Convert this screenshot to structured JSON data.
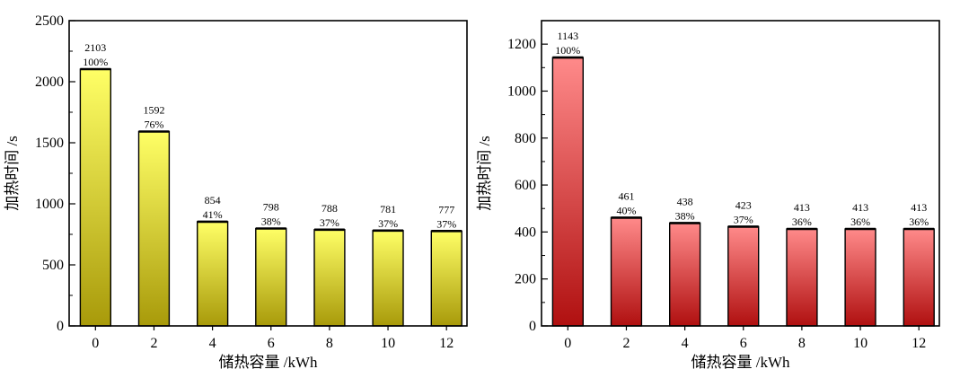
{
  "chart_data": [
    {
      "type": "bar",
      "categories": [
        "0",
        "2",
        "4",
        "6",
        "8",
        "10",
        "12"
      ],
      "values": [
        2103,
        1592,
        854,
        798,
        788,
        781,
        777
      ],
      "value_labels": [
        "2103",
        "1592",
        "854",
        "798",
        "788",
        "781",
        "777"
      ],
      "percent_labels": [
        "100%",
        "76%",
        "41%",
        "38%",
        "37%",
        "37%",
        "37%"
      ],
      "xlabel": "储热容量 /kWh",
      "ylabel": "加热时间 /s",
      "ylim": [
        0,
        2500
      ],
      "yticks": [
        0,
        500,
        1000,
        1500,
        2000,
        2500
      ],
      "grid": false,
      "bar_color_top": "#ffff66",
      "bar_color_bottom": "#a89a0a"
    },
    {
      "type": "bar",
      "categories": [
        "0",
        "2",
        "4",
        "6",
        "8",
        "10",
        "12"
      ],
      "values": [
        1143,
        461,
        438,
        423,
        413,
        413,
        413
      ],
      "value_labels": [
        "1143",
        "461",
        "438",
        "423",
        "413",
        "413",
        "413"
      ],
      "percent_labels": [
        "100%",
        "40%",
        "38%",
        "37%",
        "36%",
        "36%",
        "36%"
      ],
      "xlabel": "储热容量 /kWh",
      "ylabel": "加热时间 /s",
      "ylim": [
        0,
        1300
      ],
      "yticks": [
        0,
        200,
        400,
        600,
        800,
        1000,
        1200
      ],
      "grid": false,
      "bar_color_top": "#ff8a8a",
      "bar_color_bottom": "#b01010"
    }
  ]
}
